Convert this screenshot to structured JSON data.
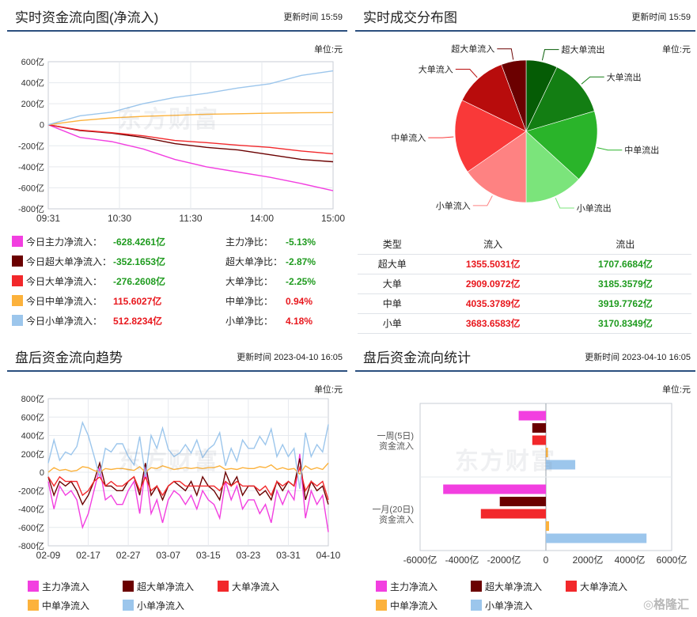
{
  "p1": {
    "title": "实时资金流向图(净流入)",
    "time_label": "更新时间",
    "time": "15:59",
    "unit": "单位:元",
    "watermark": "东方财富",
    "legend": [
      {
        "label": "今日主力净流入：",
        "value": "-628.4261亿",
        "ratio_label": "主力净比：",
        "ratio": "-5.13%",
        "color": "#f23fe0",
        "tone": "green"
      },
      {
        "label": "今日超大单净流入：",
        "value": "-352.1653亿",
        "ratio_label": "超大单净比：",
        "ratio": "-2.87%",
        "color": "#6b0000",
        "tone": "green"
      },
      {
        "label": "今日大单净流入：",
        "value": "-276.2608亿",
        "ratio_label": "大单净比：",
        "ratio": "-2.25%",
        "color": "#f2282b",
        "tone": "green"
      },
      {
        "label": "今日中单净流入：",
        "value": "115.6027亿",
        "ratio_label": "中单净比：",
        "ratio": "0.94%",
        "color": "#fcb23c",
        "tone": "red"
      },
      {
        "label": "今日小单净流入：",
        "value": "512.8234亿",
        "ratio_label": "小单净比：",
        "ratio": "4.18%",
        "color": "#9cc6ec",
        "tone": "red"
      }
    ]
  },
  "p2": {
    "title": "实时成交分布图",
    "time_label": "更新时间",
    "time": "15:59",
    "unit": "单位:元",
    "table_headers": [
      "类型",
      "流入",
      "流出"
    ],
    "rows": [
      {
        "type": "超大单",
        "in": "1355.5031亿",
        "out": "1707.6684亿"
      },
      {
        "type": "大单",
        "in": "2909.0972亿",
        "out": "3185.3579亿"
      },
      {
        "type": "中单",
        "in": "4035.3789亿",
        "out": "3919.7762亿"
      },
      {
        "type": "小单",
        "in": "3683.6583亿",
        "out": "3170.8349亿"
      }
    ]
  },
  "p3": {
    "title": "盘后资金流向趋势",
    "time_label": "更新时间",
    "time": "2023-04-10 16:05",
    "unit": "单位:元",
    "watermark": "东方财富",
    "legend": [
      {
        "label": "主力净流入",
        "color": "#f23fe0"
      },
      {
        "label": "超大单净流入",
        "color": "#6b0000"
      },
      {
        "label": "大单净流入",
        "color": "#f2282b"
      },
      {
        "label": "中单净流入",
        "color": "#fcb23c"
      },
      {
        "label": "小单净流入",
        "color": "#9cc6ec"
      }
    ]
  },
  "p4": {
    "title": "盘后资金流向统计",
    "time_label": "更新时间",
    "time": "2023-04-10 16:05",
    "unit": "单位:元",
    "watermark": "东方财富",
    "legend": [
      {
        "label": "主力净流入",
        "color": "#f23fe0"
      },
      {
        "label": "超大单净流入",
        "color": "#6b0000"
      },
      {
        "label": "大单净流入",
        "color": "#f2282b"
      },
      {
        "label": "中单净流入",
        "color": "#fcb23c"
      },
      {
        "label": "小单净流入",
        "color": "#9cc6ec"
      }
    ]
  },
  "brand": "格隆汇",
  "chart_data": [
    {
      "type": "line",
      "title": "实时资金流向图(净流入)",
      "xticks": [
        "09:31",
        "10:30",
        "11:30",
        "14:00",
        "15:00"
      ],
      "yticks": [
        "600亿",
        "400亿",
        "200亿",
        "0",
        "-200亿",
        "-400亿",
        "-600亿",
        "-800亿"
      ],
      "ylim": [
        -800,
        600
      ],
      "grid": true,
      "series": [
        {
          "name": "主力净流入",
          "color": "#f23fe0",
          "values": [
            0,
            -120,
            -160,
            -230,
            -330,
            -400,
            -450,
            -500,
            -560,
            -628
          ]
        },
        {
          "name": "超大单净流入",
          "color": "#6b0000",
          "values": [
            0,
            -55,
            -80,
            -120,
            -180,
            -215,
            -240,
            -285,
            -330,
            -352
          ]
        },
        {
          "name": "大单净流入",
          "color": "#f2282b",
          "values": [
            0,
            -50,
            -75,
            -105,
            -150,
            -170,
            -195,
            -215,
            -250,
            -276
          ]
        },
        {
          "name": "中单净流入",
          "color": "#fcb23c",
          "values": [
            0,
            40,
            65,
            80,
            90,
            100,
            105,
            110,
            114,
            116
          ]
        },
        {
          "name": "小单净流入",
          "color": "#9cc6ec",
          "values": [
            0,
            85,
            120,
            200,
            260,
            300,
            350,
            390,
            470,
            513
          ]
        }
      ]
    },
    {
      "type": "pie",
      "title": "实时成交分布图",
      "slices": [
        {
          "label": "超大单流出",
          "value": 1707.6684,
          "color": "#055c05"
        },
        {
          "label": "大单流出",
          "value": 3185.3579,
          "color": "#137e13"
        },
        {
          "label": "中单流出",
          "value": 3919.7762,
          "color": "#2ab42a"
        },
        {
          "label": "小单流出",
          "value": 3170.8349,
          "color": "#7be47b"
        },
        {
          "label": "小单流入",
          "value": 3683.6583,
          "color": "#fe8282"
        },
        {
          "label": "中单流入",
          "value": 4035.3789,
          "color": "#f93939"
        },
        {
          "label": "大单流入",
          "value": 2909.0972,
          "color": "#b80c0c"
        },
        {
          "label": "超大单流入",
          "value": 1355.5031,
          "color": "#6b0000"
        }
      ]
    },
    {
      "type": "line",
      "title": "盘后资金流向趋势",
      "xticks": [
        "02-09",
        "02-17",
        "02-27",
        "03-07",
        "03-15",
        "03-23",
        "03-31",
        "04-10"
      ],
      "yticks": [
        "800亿",
        "600亿",
        "400亿",
        "200亿",
        "0",
        "-200亿",
        "-400亿",
        "-600亿",
        "-800亿"
      ],
      "ylim": [
        -800,
        800
      ],
      "grid": true,
      "series": [
        {
          "name": "主力净流入",
          "color": "#f23fe0",
          "values": [
            -100,
            -400,
            -150,
            -250,
            -200,
            -300,
            -600,
            -450,
            -200,
            50,
            -300,
            -250,
            -350,
            -350,
            -200,
            -100,
            -450,
            50,
            -450,
            -300,
            -550,
            -300,
            -200,
            -250,
            -350,
            -250,
            -400,
            -200,
            -300,
            -350,
            -500,
            -100,
            -300,
            -150,
            -400,
            -300,
            -300,
            -450,
            -350,
            -550,
            -200,
            -350,
            -200,
            -300,
            200,
            -500,
            -200,
            -350,
            -250,
            -650
          ]
        },
        {
          "name": "超大单净流入",
          "color": "#6b0000",
          "values": [
            -50,
            -250,
            -100,
            -150,
            -100,
            -200,
            -350,
            -250,
            -100,
            100,
            -150,
            -150,
            -200,
            -200,
            -100,
            -50,
            -250,
            100,
            -250,
            -150,
            -300,
            -150,
            -100,
            -150,
            -200,
            -100,
            -250,
            -50,
            -150,
            -200,
            -300,
            0,
            -150,
            -50,
            -250,
            -150,
            -150,
            -250,
            -200,
            -300,
            -100,
            -200,
            -100,
            -150,
            150,
            -300,
            -100,
            -200,
            -150,
            -350
          ]
        },
        {
          "name": "大单净流入",
          "color": "#f2282b",
          "values": [
            -50,
            -150,
            -50,
            -100,
            -100,
            -100,
            -250,
            -200,
            -100,
            -50,
            -150,
            -100,
            -150,
            -150,
            -100,
            -50,
            -200,
            -50,
            -200,
            -150,
            -250,
            -150,
            -100,
            -100,
            -150,
            -150,
            -150,
            -150,
            -150,
            -150,
            -200,
            -100,
            -150,
            -100,
            -150,
            -150,
            -150,
            -200,
            -150,
            -250,
            -100,
            -150,
            -100,
            -150,
            50,
            -200,
            -100,
            -150,
            -100,
            -300
          ]
        },
        {
          "name": "中单净流入",
          "color": "#fcb23c",
          "values": [
            0,
            50,
            20,
            30,
            10,
            20,
            60,
            50,
            20,
            0,
            40,
            30,
            40,
            40,
            30,
            20,
            60,
            0,
            50,
            40,
            70,
            50,
            30,
            40,
            50,
            40,
            50,
            40,
            50,
            50,
            70,
            30,
            40,
            30,
            50,
            40,
            40,
            60,
            50,
            80,
            30,
            50,
            30,
            40,
            -20,
            70,
            30,
            50,
            30,
            100
          ]
        },
        {
          "name": "小单净流入",
          "color": "#9cc6ec",
          "values": [
            100,
            350,
            130,
            220,
            190,
            280,
            540,
            400,
            180,
            -50,
            260,
            220,
            310,
            310,
            170,
            80,
            390,
            -50,
            400,
            260,
            480,
            250,
            170,
            210,
            300,
            210,
            350,
            160,
            250,
            300,
            430,
            70,
            260,
            120,
            350,
            260,
            260,
            390,
            300,
            470,
            170,
            300,
            170,
            260,
            -180,
            430,
            170,
            300,
            220,
            520
          ]
        }
      ]
    },
    {
      "type": "bar",
      "title": "盘后资金流向统计",
      "orientation": "horizontal",
      "categories": [
        "一周(5日)资金流入",
        "一月(20日)资金流入"
      ],
      "category_lines": [
        [
          "一周(5日)",
          "资金流入"
        ],
        [
          "一月(20日)",
          "资金流入"
        ]
      ],
      "xticks": [
        "-6000亿",
        "-4000亿",
        "-2000亿",
        "0",
        "2000亿",
        "4000亿",
        "6000亿"
      ],
      "xlim": [
        -6000,
        6000
      ],
      "series": [
        {
          "name": "主力净流入",
          "color": "#f23fe0",
          "values": [
            -1300,
            -4900
          ]
        },
        {
          "name": "超大单净流入",
          "color": "#6b0000",
          "values": [
            -650,
            -2200
          ]
        },
        {
          "name": "大单净流入",
          "color": "#f2282b",
          "values": [
            -650,
            -3100
          ]
        },
        {
          "name": "中单净流入",
          "color": "#fcb23c",
          "values": [
            100,
            150
          ]
        },
        {
          "name": "小单净流入",
          "color": "#9cc6ec",
          "values": [
            1400,
            4800
          ]
        }
      ]
    }
  ]
}
